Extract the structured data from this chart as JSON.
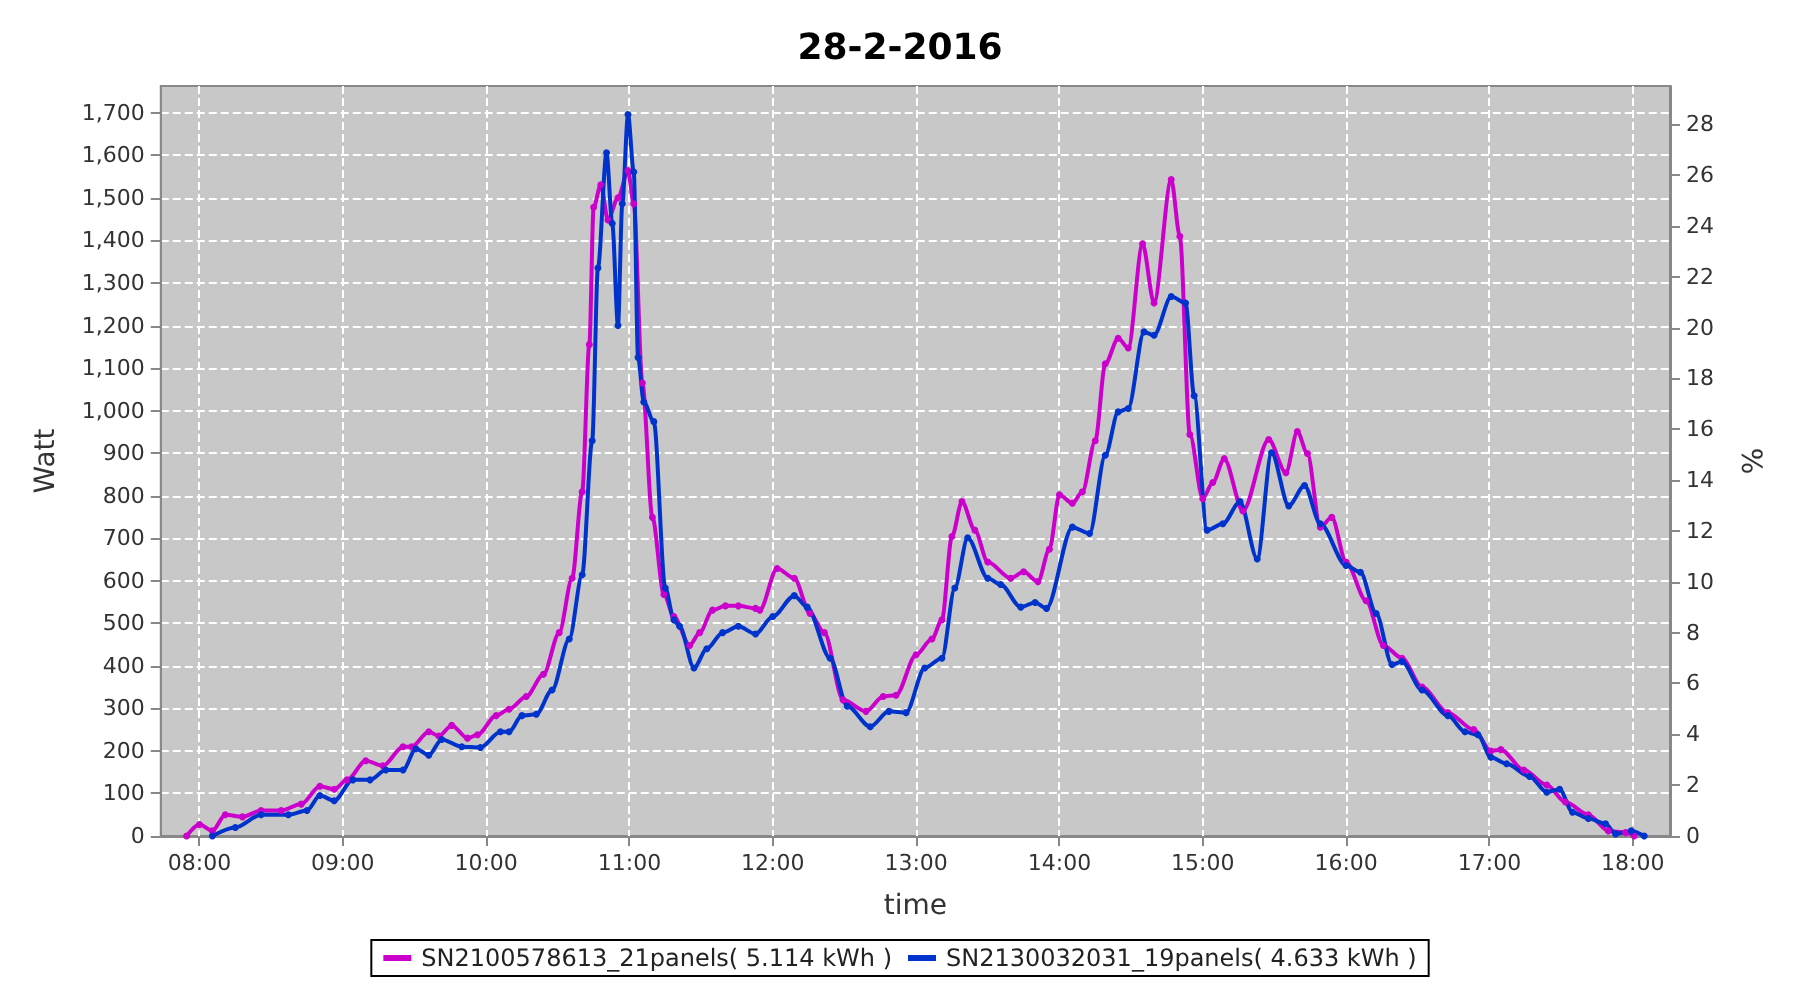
{
  "chart_data": {
    "type": "line",
    "title": "28-2-2016",
    "xlabel": "time",
    "ylabel": "Watt",
    "y2label": "%",
    "xlim": [
      7.73,
      18.26
    ],
    "xticks": [
      {
        "value": 8,
        "label": "08:00"
      },
      {
        "value": 9,
        "label": "09:00"
      },
      {
        "value": 10,
        "label": "10:00"
      },
      {
        "value": 11,
        "label": "11:00"
      },
      {
        "value": 12,
        "label": "12:00"
      },
      {
        "value": 13,
        "label": "13:00"
      },
      {
        "value": 14,
        "label": "14:00"
      },
      {
        "value": 15,
        "label": "15:00"
      },
      {
        "value": 16,
        "label": "16:00"
      },
      {
        "value": 17,
        "label": "17:00"
      },
      {
        "value": 18,
        "label": "18:00"
      }
    ],
    "ylim": [
      0,
      1763
    ],
    "yticks": [
      0,
      100,
      200,
      300,
      400,
      500,
      600,
      700,
      800,
      900,
      {
        "value": 1000,
        "label": "1,000"
      },
      {
        "value": 1100,
        "label": "1,100"
      },
      {
        "value": 1200,
        "label": "1,200"
      },
      {
        "value": 1300,
        "label": "1,300"
      },
      {
        "value": 1400,
        "label": "1,400"
      },
      {
        "value": 1500,
        "label": "1,500"
      },
      {
        "value": 1600,
        "label": "1,600"
      },
      {
        "value": 1700,
        "label": "1,700"
      }
    ],
    "y2lim": [
      0,
      29.5
    ],
    "y2ticks": [
      0,
      2,
      4,
      6,
      8,
      10,
      12,
      14,
      16,
      18,
      20,
      22,
      24,
      26,
      28
    ],
    "grid": true,
    "legend": "bottom",
    "marker": "circle",
    "line_style": "solid",
    "series": [
      {
        "name": "SN2100578613_21panels( 5.114 kWh )",
        "color": "#cc00cc",
        "x": [
          7.91,
          8.0,
          8.09,
          8.18,
          8.3,
          8.43,
          8.57,
          8.71,
          8.84,
          8.94,
          9.03,
          9.16,
          9.28,
          9.42,
          9.48,
          9.6,
          9.67,
          9.76,
          9.87,
          9.94,
          10.07,
          10.16,
          10.28,
          10.4,
          10.51,
          10.6,
          10.67,
          10.72,
          10.75,
          10.8,
          10.85,
          10.92,
          10.99,
          11.03,
          11.09,
          11.16,
          11.24,
          11.31,
          11.42,
          11.49,
          11.58,
          11.67,
          11.76,
          11.88,
          11.91,
          12.03,
          12.15,
          12.26,
          12.36,
          12.49,
          12.65,
          12.77,
          12.86,
          13.0,
          13.11,
          13.18,
          13.25,
          13.32,
          13.41,
          13.5,
          13.66,
          13.75,
          13.85,
          13.93,
          14.0,
          14.09,
          14.16,
          14.25,
          14.32,
          14.41,
          14.48,
          14.58,
          14.66,
          14.78,
          14.84,
          14.91,
          15.0,
          15.07,
          15.15,
          15.28,
          15.46,
          15.58,
          15.66,
          15.73,
          15.82,
          15.9,
          16.0,
          16.14,
          16.26,
          16.39,
          16.53,
          16.71,
          16.89,
          17.01,
          17.08,
          17.24,
          17.4,
          17.53,
          17.69,
          17.83,
          17.95,
          18.01
        ],
        "values": [
          0,
          27,
          12,
          50,
          45,
          60,
          60,
          75,
          117,
          110,
          132,
          177,
          165,
          210,
          210,
          245,
          235,
          260,
          230,
          238,
          283,
          298,
          328,
          380,
          478,
          606,
          809,
          1155,
          1478,
          1531,
          1448,
          1500,
          1564,
          1486,
          1065,
          749,
          568,
          516,
          448,
          478,
          531,
          541,
          541,
          535,
          531,
          629,
          606,
          523,
          478,
          320,
          293,
          328,
          331,
          426,
          463,
          508,
          704,
          786,
          719,
          644,
          606,
          621,
          598,
          674,
          802,
          782,
          809,
          929,
          1110,
          1170,
          1147,
          1392,
          1253,
          1543,
          1410,
          944,
          793,
          831,
          887,
          764,
          932,
          854,
          951,
          899,
          726,
          749,
          644,
          553,
          448,
          418,
          350,
          290,
          250,
          200,
          203,
          155,
          120,
          80,
          50,
          12,
          8,
          0
        ]
      },
      {
        "name": "SN2130032031_19panels( 4.633 kWh )",
        "color": "#0033cc",
        "x": [
          8.09,
          8.25,
          8.43,
          8.62,
          8.75,
          8.84,
          8.94,
          9.07,
          9.19,
          9.3,
          9.42,
          9.51,
          9.6,
          9.69,
          9.83,
          9.96,
          10.1,
          10.16,
          10.25,
          10.35,
          10.46,
          10.58,
          10.67,
          10.74,
          10.78,
          10.84,
          10.88,
          10.92,
          10.95,
          10.99,
          11.03,
          11.06,
          11.1,
          11.17,
          11.25,
          11.31,
          11.35,
          11.45,
          11.54,
          11.65,
          11.76,
          11.88,
          12.0,
          12.15,
          12.24,
          12.4,
          12.52,
          12.68,
          12.81,
          12.93,
          13.06,
          13.18,
          13.27,
          13.36,
          13.5,
          13.59,
          13.73,
          13.83,
          13.91,
          14.09,
          14.21,
          14.32,
          14.41,
          14.48,
          14.59,
          14.66,
          14.78,
          14.88,
          14.94,
          15.03,
          15.14,
          15.26,
          15.38,
          15.48,
          15.6,
          15.71,
          15.82,
          16.0,
          16.1,
          16.21,
          16.32,
          16.39,
          16.53,
          16.71,
          16.83,
          16.92,
          17.01,
          17.12,
          17.28,
          17.4,
          17.49,
          17.58,
          17.69,
          17.81,
          17.88,
          17.99,
          18.08
        ],
        "values": [
          0,
          20,
          50,
          50,
          60,
          95,
          83,
          132,
          132,
          155,
          155,
          205,
          190,
          227,
          210,
          208,
          245,
          245,
          283,
          286,
          343,
          463,
          614,
          929,
          1335,
          1606,
          1440,
          1200,
          1486,
          1696,
          1561,
          1125,
          1020,
          974,
          583,
          508,
          493,
          395,
          440,
          478,
          493,
          475,
          516,
          565,
          538,
          418,
          305,
          257,
          293,
          290,
          395,
          418,
          583,
          701,
          606,
          591,
          538,
          549,
          535,
          726,
          711,
          895,
          997,
          1005,
          1185,
          1177,
          1268,
          1253,
          1035,
          719,
          734,
          786,
          651,
          901,
          776,
          824,
          734,
          636,
          620,
          523,
          403,
          410,
          343,
          283,
          245,
          238,
          185,
          170,
          140,
          103,
          110,
          56,
          41,
          29,
          5,
          12,
          0
        ]
      }
    ]
  }
}
